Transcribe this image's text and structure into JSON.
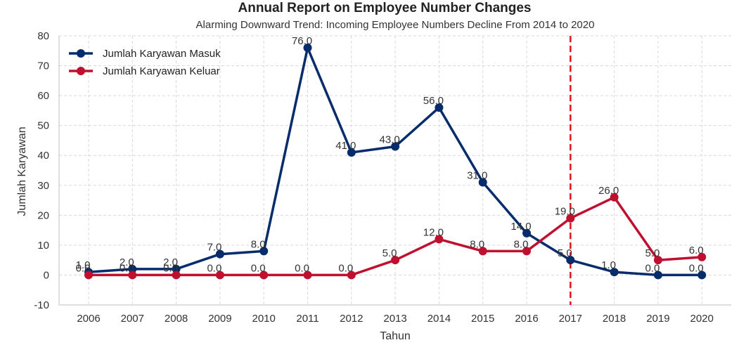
{
  "chart_data": {
    "type": "line",
    "title": "Annual Report on Employee Number Changes",
    "subtitle": "Alarming Downward Trend: Incoming Employee Numbers Decline From 2014 to 2020",
    "xlabel": "Tahun",
    "ylabel": "Jumlah Karyawan",
    "ylim": [
      -10,
      80
    ],
    "yticks": [
      -10,
      0,
      10,
      20,
      30,
      40,
      50,
      60,
      70,
      80
    ],
    "x": [
      "2006",
      "2007",
      "2008",
      "2009",
      "2010",
      "2011",
      "2012",
      "2013",
      "2014",
      "2015",
      "2016",
      "2017",
      "2018",
      "2019",
      "2020"
    ],
    "series": [
      {
        "name": "Jumlah Karyawan Masuk",
        "color": "#062c6b",
        "values": [
          1,
          2,
          2,
          7,
          8,
          76,
          41,
          43,
          56,
          31,
          14,
          5,
          1,
          0,
          0
        ],
        "labels": [
          "1.0",
          "2.0",
          "2.0",
          "7.0",
          "8.0",
          "76.0",
          "41.0",
          "43.0",
          "56.0",
          "31.0",
          "14.0",
          "5.0",
          "1.0",
          "0.0",
          "0.0"
        ]
      },
      {
        "name": "Jumlah Karyawan Keluar",
        "color": "#c0102f",
        "values": [
          0,
          0,
          0,
          0,
          0,
          0,
          0,
          5,
          12,
          8,
          8,
          19,
          26,
          5,
          6
        ],
        "labels": [
          "0.0",
          "0.0",
          "0.0",
          "0.0",
          "0.0",
          "0.0",
          "0.0",
          "5.0",
          "12.0",
          "8.0",
          "8.0",
          "19.0",
          "26.0",
          "5.0",
          "6.0"
        ]
      }
    ],
    "reference_line": {
      "x": "2017",
      "color": "#e8141b",
      "style": "dashed"
    },
    "grid": true,
    "legend": "top-left"
  }
}
